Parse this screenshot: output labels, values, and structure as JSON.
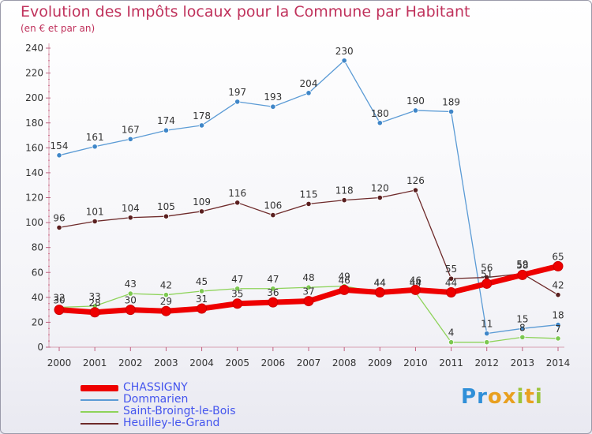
{
  "header": {
    "title": "Evolution des Impôts locaux pour la Commune par Habitant",
    "subtitle": "(en € et par an)"
  },
  "logo": {
    "letters": [
      "P",
      "r",
      "o",
      "x",
      "i",
      "t",
      "i"
    ],
    "colors": [
      "#2f8fd8",
      "#2f8fd8",
      "#e8a020",
      "#e8a020",
      "#9bc43a",
      "#e8a020",
      "#9bc43a"
    ]
  },
  "chart_data": {
    "type": "line",
    "title": "Evolution des Impôts locaux pour la Commune par Habitant",
    "subtitle": "(en € et par an)",
    "xlabel": "",
    "ylabel": "",
    "ylim": [
      0,
      240
    ],
    "yticks": [
      0,
      20,
      40,
      60,
      80,
      100,
      120,
      140,
      160,
      180,
      200,
      220,
      240
    ],
    "x": [
      "2000",
      "2001",
      "2002",
      "2003",
      "2004",
      "2005",
      "2006",
      "2007",
      "2008",
      "2009",
      "2010",
      "2011",
      "2012",
      "2013",
      "2014"
    ],
    "grid": false,
    "legend_position": "bottom-left",
    "series": [
      {
        "name": "Dommarien",
        "color": "#5b9bd5",
        "values": [
          154,
          161,
          167,
          174,
          178,
          197,
          193,
          204,
          230,
          180,
          190,
          189,
          11,
          15,
          18
        ],
        "labels": [
          "154",
          "161",
          "167",
          "174",
          "178",
          "197",
          "193",
          "204",
          "230",
          "180",
          "190",
          "189",
          "11",
          "15",
          "18"
        ]
      },
      {
        "name": "Heuilley-le-Grand",
        "color": "#6e2a2a",
        "values": [
          96,
          101,
          104,
          105,
          109,
          116,
          106,
          115,
          118,
          120,
          126,
          55,
          56,
          59,
          42
        ],
        "labels": [
          "96",
          "101",
          "104",
          "105",
          "109",
          "116",
          "106",
          "115",
          "118",
          "120",
          "126",
          "55",
          "56",
          "59",
          "42"
        ]
      },
      {
        "name": "Saint-Broingt-le-Bois",
        "color": "#8ed35a",
        "values": [
          32,
          33,
          43,
          42,
          45,
          47,
          47,
          48,
          49,
          44,
          44,
          4,
          4,
          8,
          7
        ],
        "labels": [
          "32",
          "33",
          "43",
          "42",
          "45",
          "47",
          "47",
          "48",
          "49",
          "44",
          "44",
          "4",
          "",
          "8",
          "7"
        ]
      },
      {
        "name": "CHASSIGNY",
        "color": "#ee0000",
        "values": [
          30,
          28,
          30,
          29,
          31,
          35,
          36,
          37,
          46,
          44,
          46,
          44,
          51,
          58,
          65
        ],
        "labels": [
          "30",
          "28",
          "30",
          "29",
          "31",
          "35",
          "36",
          "37",
          "46",
          "44",
          "46",
          "44",
          "51",
          "58",
          "65"
        ]
      }
    ],
    "legend_order": [
      "CHASSIGNY",
      "Dommarien",
      "Saint-Broingt-le-Bois",
      "Heuilley-le-Grand"
    ]
  }
}
